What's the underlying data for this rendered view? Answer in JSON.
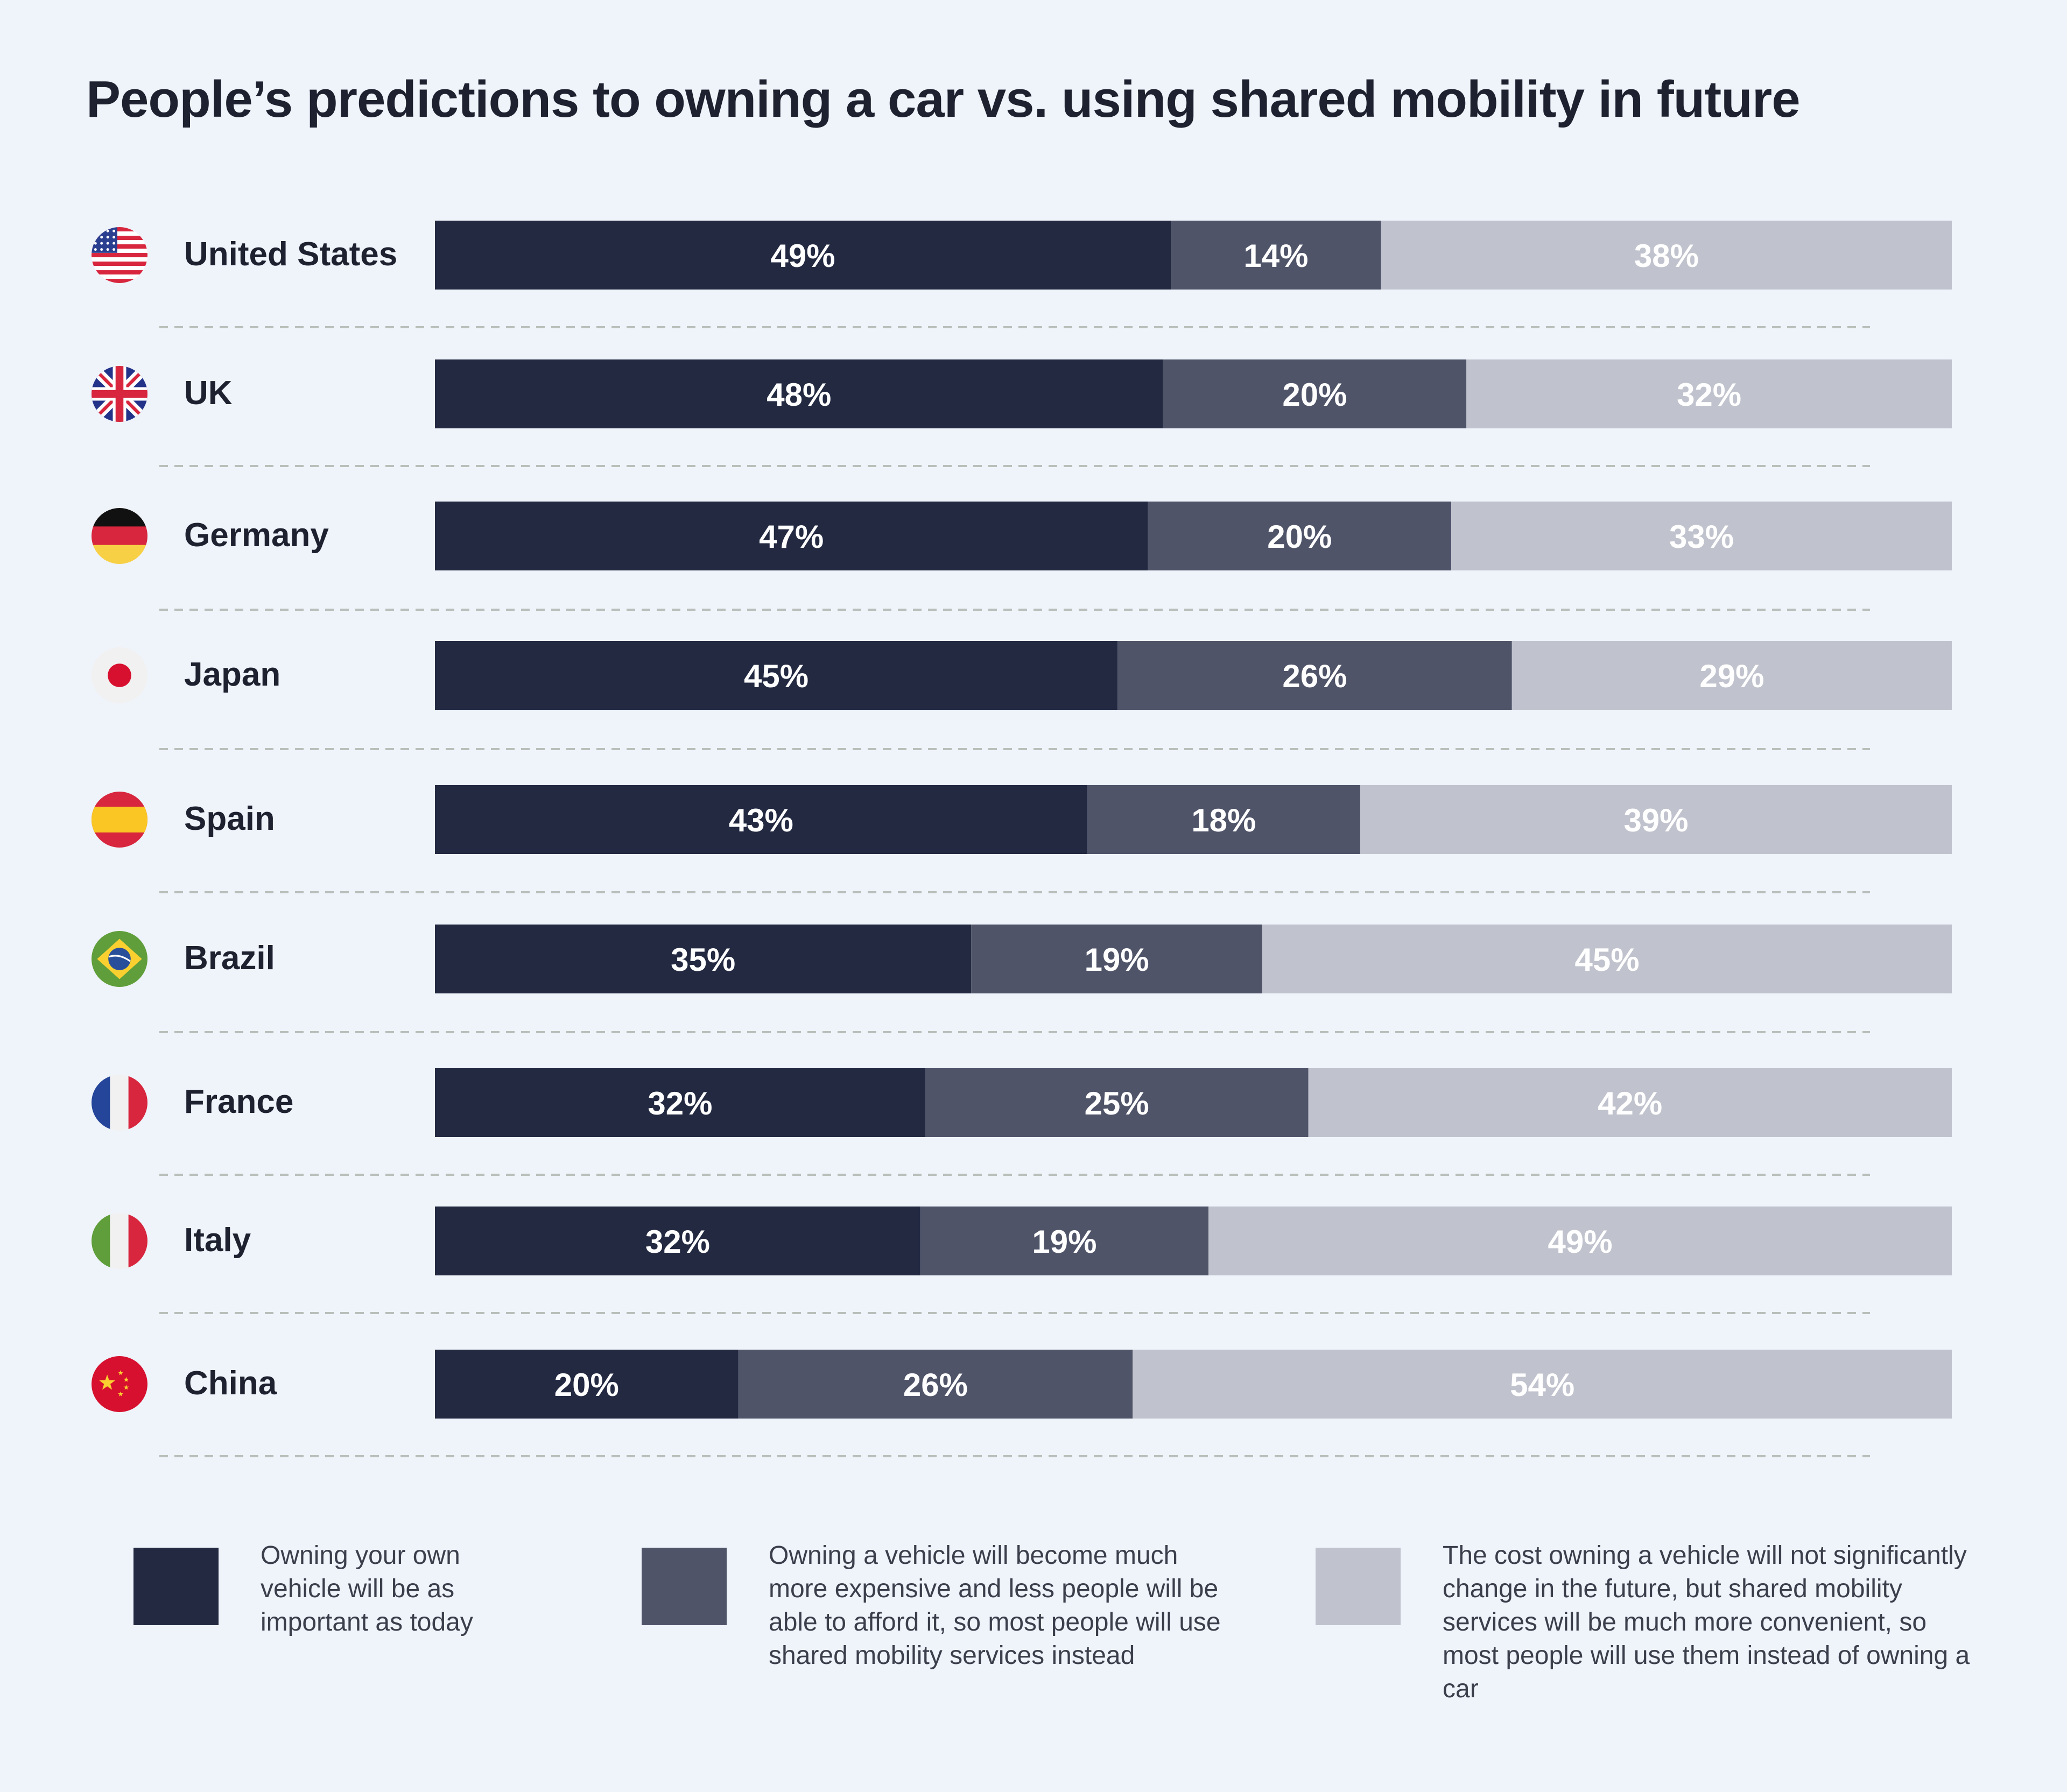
{
  "title": "People’s predictions to owning a car vs. using shared mobility in future",
  "colors": {
    "background": "#eff3fa",
    "series": [
      "#222941",
      "#4f5469",
      "#c0c3cd"
    ],
    "label_text": "#ffffff",
    "separator": "#b9bfba"
  },
  "legend": [
    "Owning your own vehicle will be as important as today",
    "Owning a vehicle will become much more expensive and less people will be able to afford it, so most people will use shared mobility services instead",
    "The cost owning a vehicle will not significantly change in the future, but shared mobility services will be much more convenient, so most people will use them instead of owning a car"
  ],
  "chart_data": {
    "type": "bar",
    "orientation": "horizontal",
    "stacked": true,
    "title": "People’s predictions to owning a car vs. using shared mobility in future",
    "categories": [
      "United States",
      "UK",
      "Germany",
      "Japan",
      "Spain",
      "Brazil",
      "France",
      "Italy",
      "China"
    ],
    "flags": [
      "us-flag-icon",
      "uk-flag-icon",
      "germany-flag-icon",
      "japan-flag-icon",
      "spain-flag-icon",
      "brazil-flag-icon",
      "france-flag-icon",
      "italy-flag-icon",
      "china-flag-icon"
    ],
    "series": [
      {
        "values": [
          49,
          48,
          47,
          45,
          43,
          35,
          32,
          32,
          20
        ]
      },
      {
        "values": [
          14,
          20,
          20,
          26,
          18,
          19,
          25,
          19,
          26
        ]
      },
      {
        "values": [
          38,
          32,
          33,
          29,
          39,
          45,
          42,
          49,
          54
        ]
      }
    ],
    "value_suffix": "%",
    "grid": false,
    "legend_position": "bottom"
  }
}
